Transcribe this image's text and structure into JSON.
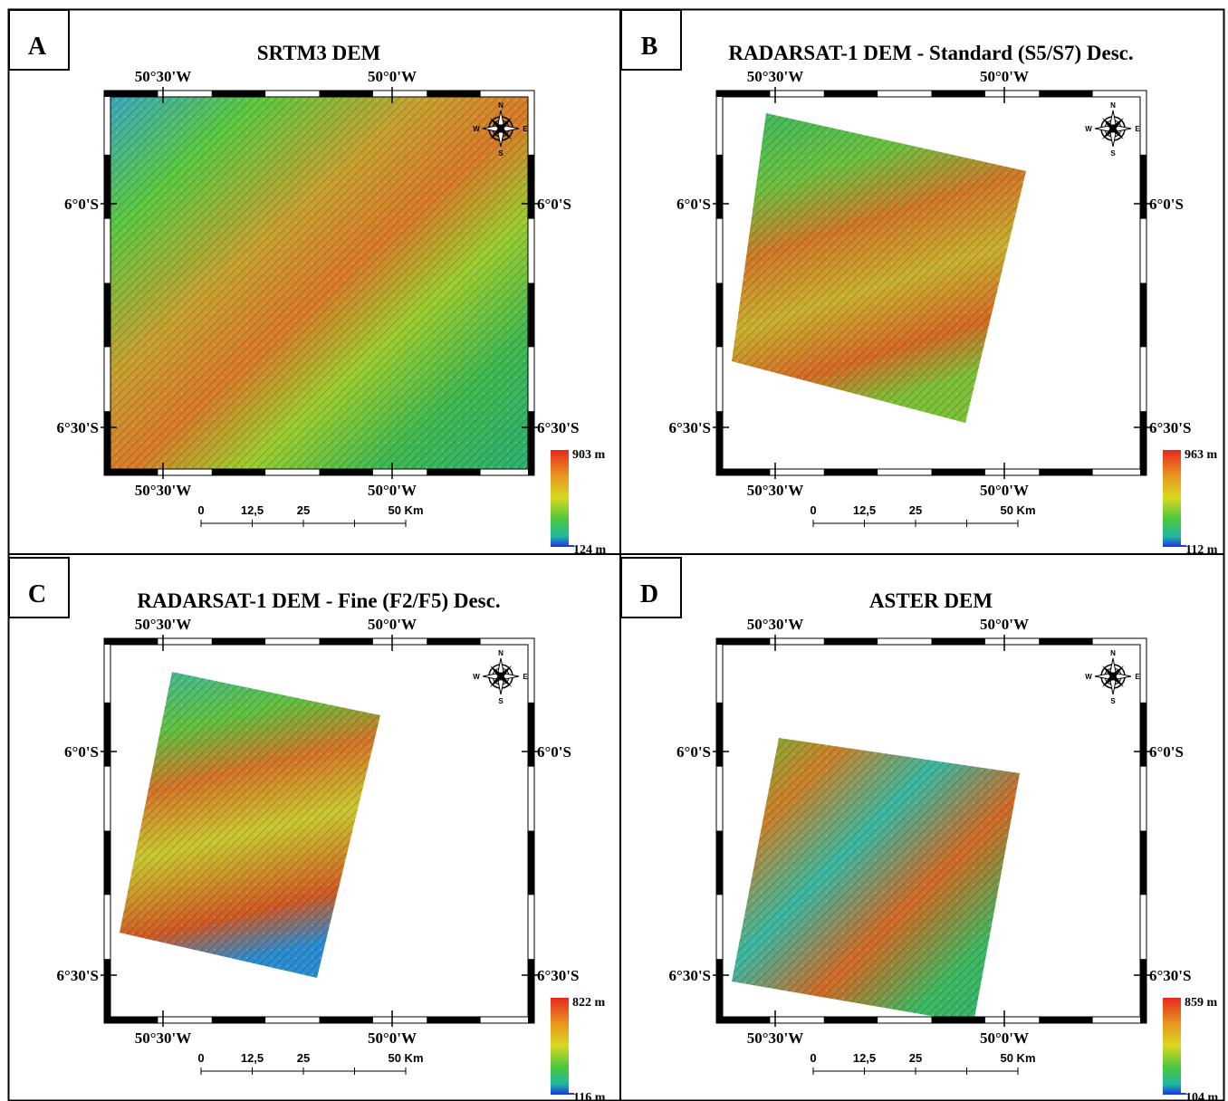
{
  "figure": {
    "panels": [
      {
        "letter": "A",
        "title": "SRTM3 DEM",
        "lon_ticks": [
          "50°30'W",
          "50°0'W"
        ],
        "lat_ticks": [
          "6°0'S",
          "6°30'S"
        ],
        "scale_labels": [
          "0",
          "12,5",
          "25",
          "50 Km"
        ],
        "legend": {
          "max": "903 m",
          "min": "124 m"
        },
        "compass": {
          "n": "N",
          "s": "S",
          "e": "E",
          "w": "W",
          "icon": "compass-rose-icon"
        },
        "footprint": "full",
        "dem_image": "shaded-relief-elevation-raster"
      },
      {
        "letter": "B",
        "title": "RADARSAT-1 DEM - Standard (S5/S7) Desc.",
        "lon_ticks": [
          "50°30'W",
          "50°0'W"
        ],
        "lat_ticks": [
          "6°0'S",
          "6°30'S"
        ],
        "scale_labels": [
          "0",
          "12,5",
          "25",
          "50 Km"
        ],
        "legend": {
          "max": "963 m",
          "min": "112 m"
        },
        "compass": {
          "n": "N",
          "s": "S",
          "e": "E",
          "w": "W",
          "icon": "compass-rose-icon"
        },
        "footprint": "rotated-scene",
        "dem_image": "shaded-relief-elevation-raster"
      },
      {
        "letter": "C",
        "title": "RADARSAT-1 DEM - Fine (F2/F5) Desc.",
        "lon_ticks": [
          "50°30'W",
          "50°0'W"
        ],
        "lat_ticks": [
          "6°0'S",
          "6°30'S"
        ],
        "scale_labels": [
          "0",
          "12,5",
          "25",
          "50 Km"
        ],
        "legend": {
          "max": "822 m",
          "min": "116 m"
        },
        "compass": {
          "n": "N",
          "s": "S",
          "e": "E",
          "w": "W",
          "icon": "compass-rose-icon"
        },
        "footprint": "rotated-scene",
        "dem_image": "shaded-relief-elevation-raster"
      },
      {
        "letter": "D",
        "title": "ASTER DEM",
        "lon_ticks": [
          "50°30'W",
          "50°0'W"
        ],
        "lat_ticks": [
          "6°0'S",
          "6°30'S"
        ],
        "scale_labels": [
          "0",
          "12,5",
          "25",
          "50 Km"
        ],
        "legend": {
          "max": "859 m",
          "min": "104 m"
        },
        "compass": {
          "n": "N",
          "s": "S",
          "e": "E",
          "w": "W",
          "icon": "compass-rose-icon"
        },
        "footprint": "rotated-scene",
        "dem_image": "shaded-relief-elevation-raster"
      }
    ],
    "colors": {
      "ramp_high": "#e8281e",
      "ramp_mid_high": "#e89a1e",
      "ramp_mid": "#d8d820",
      "ramp_mid_low": "#4cc83c",
      "ramp_low": "#20b8a0",
      "ramp_lowest": "#1e3ee0",
      "frame_black": "#000000",
      "frame_white": "#ffffff"
    }
  }
}
